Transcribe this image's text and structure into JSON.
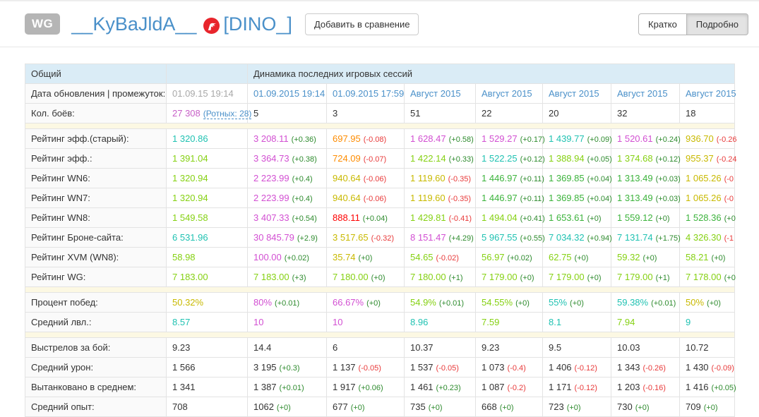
{
  "header": {
    "wg_badge": "WG",
    "player_name": "__KyBaJldA__",
    "clan_tag": "[DINO_]",
    "clan_icon": "red-dino-icon",
    "compare_button": "Добавить в сравнение",
    "view_brief": "Кратко",
    "view_detailed": "Подробно"
  },
  "colors": {
    "teal": "#20c2b2",
    "lightgreen": "#85d112",
    "green": "#3cb33c",
    "magenta": "#d24fd2",
    "yellow": "#c8b900",
    "orange": "#fe8c01",
    "red": "#fe0000",
    "black": "#333333",
    "deltaGreen": "#2e8b2e",
    "deltaRed": "#e83a3a",
    "blue": "#4a90c9",
    "battlesPurple": "#c75fc7",
    "headerBg": "#daecf6",
    "spacerBg": "#fcf8e3"
  },
  "table": {
    "header": {
      "general": "Общий",
      "dynamics": "Динамика последних игровых сессий"
    },
    "rows": [
      {
        "type": "dates",
        "label": "Дата обновления | промежуток:",
        "overall": "01.09.15 19:14",
        "sessions": [
          "01.09.2015 19:14",
          "01.09.2015 17:59",
          "Август 2015",
          "Август 2015",
          "Август 2015",
          "Август 2015",
          "Август 2015"
        ]
      },
      {
        "type": "battles",
        "label": "Кол. боёв:",
        "total": "27 308",
        "company_link": "(Ротных: 28)",
        "sessions": [
          "5",
          "3",
          "51",
          "22",
          "20",
          "32",
          "18"
        ]
      },
      {
        "type": "spacer"
      },
      {
        "type": "data",
        "label": "Рейтинг эфф.(старый):",
        "cells": [
          {
            "v": "1 320.86",
            "c": "teal"
          },
          {
            "v": "3 208.11",
            "c": "magenta",
            "d": "(+0.36)"
          },
          {
            "v": "697.95",
            "c": "orange",
            "d": "(-0.08)"
          },
          {
            "v": "1 628.47",
            "c": "magenta",
            "d": "(+0.58)"
          },
          {
            "v": "1 529.27",
            "c": "magenta",
            "d": "(+0.17)"
          },
          {
            "v": "1 439.77",
            "c": "teal",
            "d": "(+0.09)"
          },
          {
            "v": "1 520.61",
            "c": "magenta",
            "d": "(+0.24)"
          },
          {
            "v": "936.70",
            "c": "yellow",
            "d": "(-0.26"
          }
        ]
      },
      {
        "type": "data",
        "label": "Рейтинг эфф.:",
        "cells": [
          {
            "v": "1 391.04",
            "c": "lightgreen"
          },
          {
            "v": "3 364.73",
            "c": "magenta",
            "d": "(+0.38)"
          },
          {
            "v": "724.09",
            "c": "orange",
            "d": "(-0.07)"
          },
          {
            "v": "1 422.14",
            "c": "lightgreen",
            "d": "(+0.33)"
          },
          {
            "v": "1 522.25",
            "c": "teal",
            "d": "(+0.12)"
          },
          {
            "v": "1 388.94",
            "c": "lightgreen",
            "d": "(+0.05)"
          },
          {
            "v": "1 374.68",
            "c": "lightgreen",
            "d": "(+0.12)"
          },
          {
            "v": "955.37",
            "c": "yellow",
            "d": "(-0.24"
          }
        ]
      },
      {
        "type": "data",
        "label": "Рейтинг WN6:",
        "cells": [
          {
            "v": "1 320.94",
            "c": "lightgreen"
          },
          {
            "v": "2 223.99",
            "c": "magenta",
            "d": "(+0.4)"
          },
          {
            "v": "940.64",
            "c": "yellow",
            "d": "(-0.06)"
          },
          {
            "v": "1 119.60",
            "c": "yellow",
            "d": "(-0.35)"
          },
          {
            "v": "1 446.97",
            "c": "green",
            "d": "(+0.11)"
          },
          {
            "v": "1 369.85",
            "c": "green",
            "d": "(+0.04)"
          },
          {
            "v": "1 313.49",
            "c": "green",
            "d": "(+0.03)"
          },
          {
            "v": "1 065.26",
            "c": "yellow",
            "d": "(-0"
          }
        ]
      },
      {
        "type": "data",
        "label": "Рейтинг WN7:",
        "cells": [
          {
            "v": "1 320.94",
            "c": "lightgreen"
          },
          {
            "v": "2 223.99",
            "c": "magenta",
            "d": "(+0.4)"
          },
          {
            "v": "940.64",
            "c": "yellow",
            "d": "(-0.06)"
          },
          {
            "v": "1 119.60",
            "c": "yellow",
            "d": "(-0.35)"
          },
          {
            "v": "1 446.97",
            "c": "green",
            "d": "(+0.11)"
          },
          {
            "v": "1 369.85",
            "c": "green",
            "d": "(+0.04)"
          },
          {
            "v": "1 313.49",
            "c": "green",
            "d": "(+0.03)"
          },
          {
            "v": "1 065.26",
            "c": "yellow",
            "d": "(-0"
          }
        ]
      },
      {
        "type": "data",
        "label": "Рейтинг WN8:",
        "cells": [
          {
            "v": "1 549.58",
            "c": "lightgreen"
          },
          {
            "v": "3 407.33",
            "c": "magenta",
            "d": "(+0.54)"
          },
          {
            "v": "888.11",
            "c": "red",
            "d": "(+0.04)"
          },
          {
            "v": "1 429.81",
            "c": "lightgreen",
            "d": "(-0.41)"
          },
          {
            "v": "1 494.04",
            "c": "lightgreen",
            "d": "(+0.41)"
          },
          {
            "v": "1 653.61",
            "c": "green",
            "d": "(+0)"
          },
          {
            "v": "1 559.12",
            "c": "green",
            "d": "(+0)"
          },
          {
            "v": "1 528.36",
            "c": "green",
            "d": "(+0"
          }
        ]
      },
      {
        "type": "data",
        "label": "Рейтинг Броне-сайта:",
        "cells": [
          {
            "v": "6 531.96",
            "c": "teal"
          },
          {
            "v": "30 845.79",
            "c": "magenta",
            "d": "(+2.9)"
          },
          {
            "v": "3 517.65",
            "c": "yellow",
            "d": "(-0.32)"
          },
          {
            "v": "8 151.47",
            "c": "magenta",
            "d": "(+4.29)"
          },
          {
            "v": "5 967.55",
            "c": "teal",
            "d": "(+0.55)"
          },
          {
            "v": "7 034.32",
            "c": "teal",
            "d": "(+0.94)"
          },
          {
            "v": "7 131.74",
            "c": "teal",
            "d": "(+1.75)"
          },
          {
            "v": "4 326.30",
            "c": "lightgreen",
            "d": "(-1"
          }
        ]
      },
      {
        "type": "data",
        "label": "Рейтинг XVM (WN8):",
        "cells": [
          {
            "v": "58.98",
            "c": "lightgreen"
          },
          {
            "v": "100.00",
            "c": "magenta",
            "d": "(+0.02)"
          },
          {
            "v": "35.74",
            "c": "yellow",
            "d": "(+0)"
          },
          {
            "v": "54.65",
            "c": "lightgreen",
            "d": "(-0.02)"
          },
          {
            "v": "56.97",
            "c": "lightgreen",
            "d": "(+0.02)"
          },
          {
            "v": "62.75",
            "c": "lightgreen",
            "d": "(+0)"
          },
          {
            "v": "59.32",
            "c": "lightgreen",
            "d": "(+0)"
          },
          {
            "v": "58.21",
            "c": "lightgreen",
            "d": "(+0)"
          }
        ]
      },
      {
        "type": "data",
        "label": "Рейтинг WG:",
        "cells": [
          {
            "v": "7 183.00",
            "c": "lightgreen"
          },
          {
            "v": "7 183.00",
            "c": "lightgreen",
            "d": "(+3)"
          },
          {
            "v": "7 180.00",
            "c": "lightgreen",
            "d": "(+0)"
          },
          {
            "v": "7 180.00",
            "c": "lightgreen",
            "d": "(+1)"
          },
          {
            "v": "7 179.00",
            "c": "lightgreen",
            "d": "(+0)"
          },
          {
            "v": "7 179.00",
            "c": "lightgreen",
            "d": "(+0)"
          },
          {
            "v": "7 179.00",
            "c": "lightgreen",
            "d": "(+1)"
          },
          {
            "v": "7 178.00",
            "c": "lightgreen",
            "d": "(+0"
          }
        ]
      },
      {
        "type": "spacer"
      },
      {
        "type": "data",
        "label": "Процент побед:",
        "cells": [
          {
            "v": "50.32%",
            "c": "yellow"
          },
          {
            "v": "80%",
            "c": "magenta",
            "d": "(+0.01)"
          },
          {
            "v": "66.67%",
            "c": "magenta",
            "d": "(+0)"
          },
          {
            "v": "54.9%",
            "c": "lightgreen",
            "d": "(+0.01)"
          },
          {
            "v": "54.55%",
            "c": "lightgreen",
            "d": "(+0)"
          },
          {
            "v": "55%",
            "c": "teal",
            "d": "(+0)"
          },
          {
            "v": "59.38%",
            "c": "teal",
            "d": "(+0.01)"
          },
          {
            "v": "50%",
            "c": "yellow",
            "d": "(+0)"
          }
        ]
      },
      {
        "type": "data",
        "label": "Средний лвл.:",
        "cells": [
          {
            "v": "8.57",
            "c": "teal"
          },
          {
            "v": "10",
            "c": "magenta"
          },
          {
            "v": "10",
            "c": "magenta"
          },
          {
            "v": "8.96",
            "c": "teal"
          },
          {
            "v": "7.59",
            "c": "lightgreen"
          },
          {
            "v": "8.1",
            "c": "teal"
          },
          {
            "v": "7.94",
            "c": "lightgreen"
          },
          {
            "v": "9",
            "c": "teal"
          }
        ]
      },
      {
        "type": "spacer"
      },
      {
        "type": "data",
        "label": "Выстрелов за бой:",
        "cells": [
          {
            "v": "9.23",
            "c": "black"
          },
          {
            "v": "14.4",
            "c": "black"
          },
          {
            "v": "6",
            "c": "black"
          },
          {
            "v": "10.37",
            "c": "black"
          },
          {
            "v": "9.23",
            "c": "black"
          },
          {
            "v": "9.5",
            "c": "black"
          },
          {
            "v": "10.03",
            "c": "black"
          },
          {
            "v": "10.72",
            "c": "black"
          }
        ]
      },
      {
        "type": "data",
        "label": "Средний урон:",
        "cells": [
          {
            "v": "1 566",
            "c": "black"
          },
          {
            "v": "3 195",
            "c": "black",
            "d": "(+0.3)"
          },
          {
            "v": "1 137",
            "c": "black",
            "d": "(-0.05)"
          },
          {
            "v": "1 537",
            "c": "black",
            "d": "(-0.05)"
          },
          {
            "v": "1 073",
            "c": "black",
            "d": "(-0.4)"
          },
          {
            "v": "1 406",
            "c": "black",
            "d": "(-0.12)"
          },
          {
            "v": "1 343",
            "c": "black",
            "d": "(-0.26)"
          },
          {
            "v": "1 430",
            "c": "black",
            "d": "(-0.09)"
          }
        ]
      },
      {
        "type": "data",
        "label": "Вытанковано в среднем:",
        "cells": [
          {
            "v": "1 341",
            "c": "black"
          },
          {
            "v": "1 387",
            "c": "black",
            "d": "(+0.01)"
          },
          {
            "v": "1 917",
            "c": "black",
            "d": "(+0.06)"
          },
          {
            "v": "1 461",
            "c": "black",
            "d": "(+0.23)"
          },
          {
            "v": "1 087",
            "c": "black",
            "d": "(-0.2)"
          },
          {
            "v": "1 171",
            "c": "black",
            "d": "(-0.12)"
          },
          {
            "v": "1 203",
            "c": "black",
            "d": "(-0.16)"
          },
          {
            "v": "1 416",
            "c": "black",
            "d": "(+0.05)"
          }
        ]
      },
      {
        "type": "data",
        "label": "Средний опыт:",
        "cells": [
          {
            "v": "708",
            "c": "black"
          },
          {
            "v": "1062",
            "c": "black",
            "d": "(+0)"
          },
          {
            "v": "677",
            "c": "black",
            "d": "(+0)"
          },
          {
            "v": "735",
            "c": "black",
            "d": "(+0)"
          },
          {
            "v": "668",
            "c": "black",
            "d": "(+0)"
          },
          {
            "v": "723",
            "c": "black",
            "d": "(+0)"
          },
          {
            "v": "730",
            "c": "black",
            "d": "(+0)"
          },
          {
            "v": "709",
            "c": "black",
            "d": "(+0)"
          }
        ]
      }
    ]
  }
}
